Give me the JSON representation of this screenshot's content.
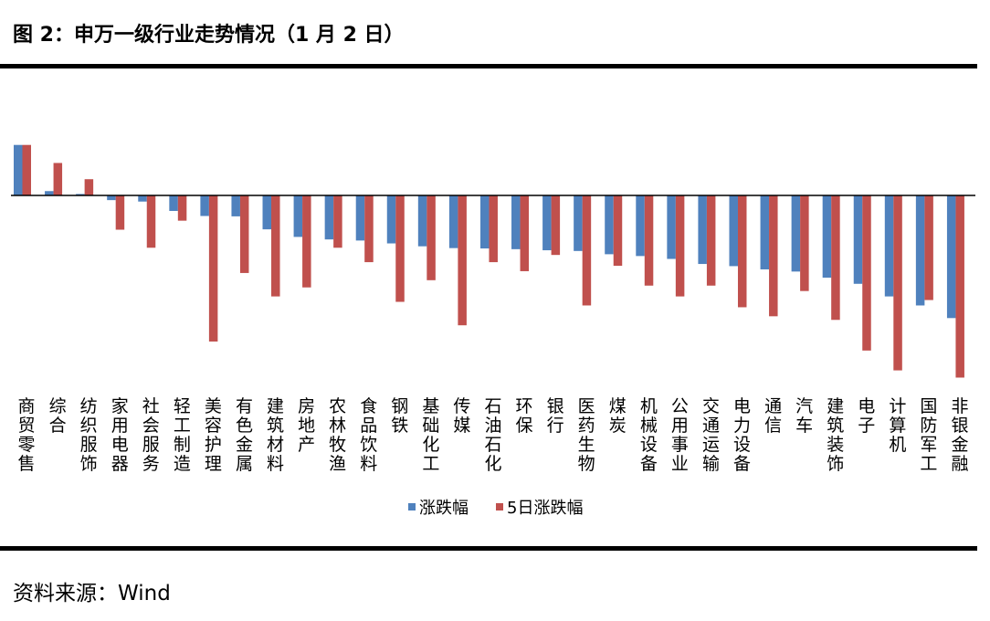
{
  "title": "图 2：申万一级行业走势情况（1 月 2 日）",
  "source": "资料来源：Wind",
  "chart_data": {
    "type": "bar",
    "title": "图 2：申万一级行业走势情况（1 月 2 日）",
    "categories": [
      "商贸零售",
      "综合",
      "纺织服饰",
      "家用电器",
      "社会服务",
      "轻工制造",
      "美容护理",
      "有色金属",
      "建筑材料",
      "房地产",
      "农林牧渔",
      "食品饮料",
      "钢铁",
      "基础化工",
      "传媒",
      "石油石化",
      "环保",
      "银行",
      "医药生物",
      "煤炭",
      "机械设备",
      "公用事业",
      "交通运输",
      "电力设备",
      "通信",
      "汽车",
      "建筑装饰",
      "电子",
      "计算机",
      "国防军工",
      "非银金融"
    ],
    "series": [
      {
        "name": "涨跌幅",
        "color": "#4F81BD",
        "values": [
          1.4,
          0.12,
          0.04,
          -0.13,
          -0.17,
          -0.43,
          -0.57,
          -0.58,
          -0.94,
          -1.15,
          -1.22,
          -1.25,
          -1.33,
          -1.41,
          -1.46,
          -1.47,
          -1.49,
          -1.52,
          -1.54,
          -1.63,
          -1.68,
          -1.76,
          -1.9,
          -1.96,
          -2.05,
          -2.11,
          -2.28,
          -2.45,
          -2.8,
          -3.05,
          -3.4
        ]
      },
      {
        "name": "5日涨跌幅",
        "color": "#C0504D",
        "values": [
          1.4,
          0.9,
          0.45,
          -0.95,
          -1.45,
          -0.7,
          -4.05,
          -2.15,
          -2.8,
          -2.55,
          -1.45,
          -1.85,
          -2.95,
          -2.35,
          -3.6,
          -1.85,
          -2.1,
          -1.65,
          -3.05,
          -1.95,
          -2.5,
          -2.8,
          -2.5,
          -3.1,
          -3.35,
          -2.65,
          -3.45,
          -4.3,
          -4.85,
          -2.9,
          -5.05
        ]
      }
    ],
    "ylim": [
      -5.1,
      1.4
    ],
    "xlabel": "",
    "ylabel": "",
    "grid": false,
    "legend": "bottom-center"
  }
}
